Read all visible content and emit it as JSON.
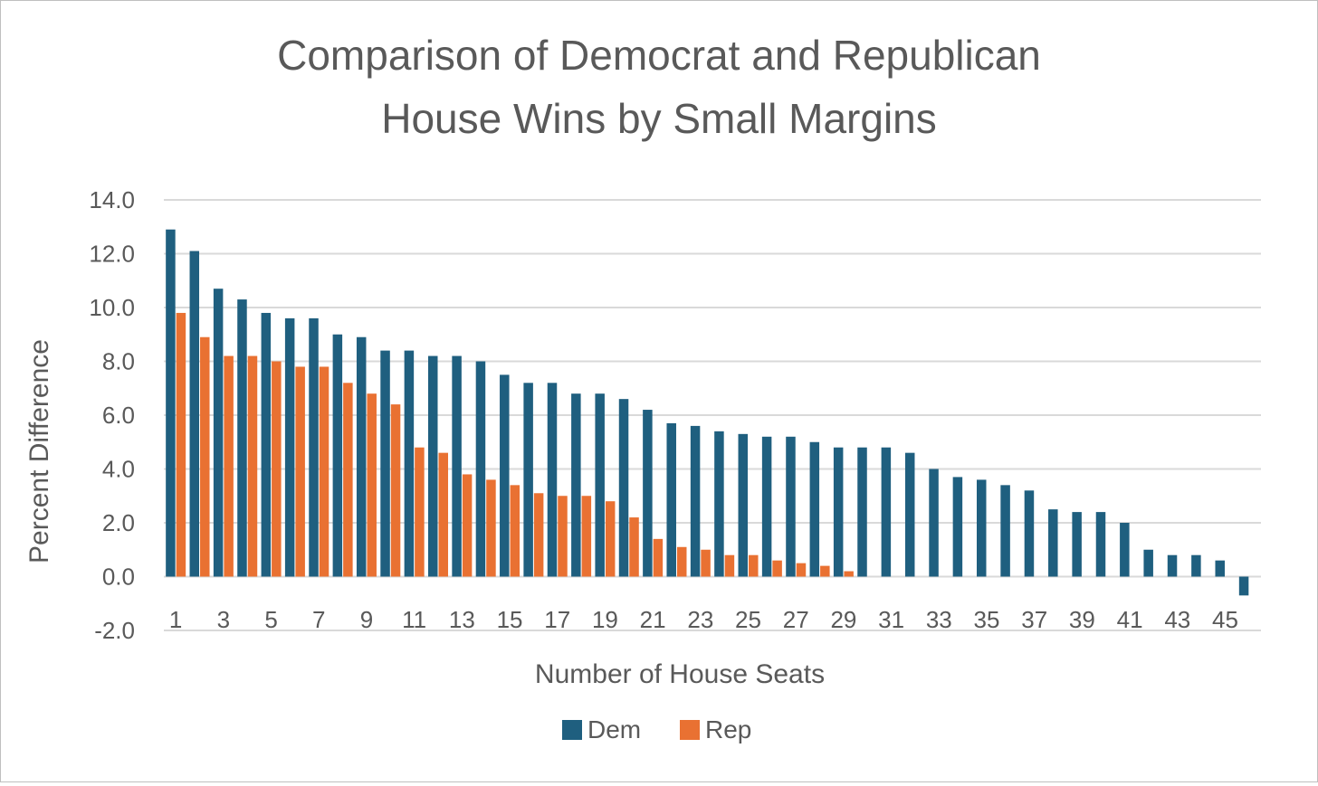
{
  "chart_data": {
    "type": "bar",
    "title_lines": [
      "Comparison of Democrat and Republican",
      "House Wins by Small Margins"
    ],
    "xlabel": "Number of House Seats",
    "ylabel": "Percent Difference",
    "ylim": [
      -2,
      14
    ],
    "y_ticks": [
      "-2.0",
      "0.0",
      "2.0",
      "4.0",
      "6.0",
      "8.0",
      "10.0",
      "12.0",
      "14.0"
    ],
    "grid": true,
    "legend_position": "bottom",
    "categories": [
      1,
      2,
      3,
      4,
      5,
      6,
      7,
      8,
      9,
      10,
      11,
      12,
      13,
      14,
      15,
      16,
      17,
      18,
      19,
      20,
      21,
      22,
      23,
      24,
      25,
      26,
      27,
      28,
      29,
      30,
      31,
      32,
      33,
      34,
      35,
      36,
      37,
      38,
      39,
      40,
      41,
      42,
      43,
      44,
      45,
      46
    ],
    "x_tick_labels": [
      "1",
      "3",
      "5",
      "7",
      "9",
      "11",
      "13",
      "15",
      "17",
      "19",
      "21",
      "23",
      "25",
      "27",
      "29",
      "31",
      "33",
      "35",
      "37",
      "39",
      "41",
      "43",
      "45"
    ],
    "series": [
      {
        "name": "Dem",
        "color": "#1f5f7f",
        "values": [
          12.9,
          12.1,
          10.7,
          10.3,
          9.8,
          9.6,
          9.6,
          9.0,
          8.9,
          8.4,
          8.4,
          8.2,
          8.2,
          8.0,
          7.5,
          7.2,
          7.2,
          6.8,
          6.8,
          6.6,
          6.2,
          5.7,
          5.6,
          5.4,
          5.3,
          5.2,
          5.2,
          5.0,
          4.8,
          4.8,
          4.8,
          4.6,
          4.0,
          3.7,
          3.6,
          3.4,
          3.2,
          2.5,
          2.4,
          2.4,
          2.0,
          1.0,
          0.8,
          0.8,
          0.6,
          -0.7
        ]
      },
      {
        "name": "Rep",
        "color": "#e97132",
        "values": [
          9.8,
          8.9,
          8.2,
          8.2,
          8.0,
          7.8,
          7.8,
          7.2,
          6.8,
          6.4,
          4.8,
          4.6,
          3.8,
          3.6,
          3.4,
          3.1,
          3.0,
          3.0,
          2.8,
          2.2,
          1.4,
          1.1,
          1.0,
          0.8,
          0.8,
          0.6,
          0.5,
          0.4,
          0.2,
          null,
          null,
          null,
          null,
          null,
          null,
          null,
          null,
          null,
          null,
          null,
          null,
          null,
          null,
          null,
          null,
          null
        ]
      }
    ]
  }
}
